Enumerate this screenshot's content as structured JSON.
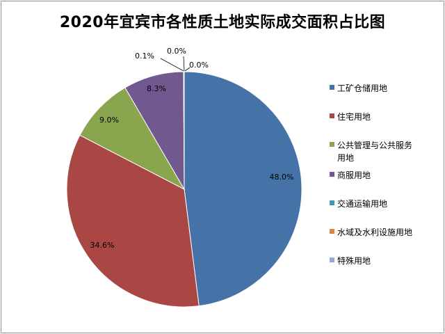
{
  "title": "2020年宜宾市各性质土地实际成交面积占比图",
  "chart_data": {
    "type": "pie",
    "title": "2020年宜宾市各性质土地实际成交面积占比图",
    "legend_position": "right",
    "slices": [
      {
        "name": "工矿仓储用地",
        "value": 48.0,
        "label": "48.0%",
        "color": "#4572A7"
      },
      {
        "name": "住宅用地",
        "value": 34.6,
        "label": "34.6%",
        "color": "#AA4643"
      },
      {
        "name": "公共管理与公共服务用地",
        "value": 9.0,
        "label": "9.0%",
        "color": "#89A54E"
      },
      {
        "name": "商服用地",
        "value": 8.3,
        "label": "8.3%",
        "color": "#71588F"
      },
      {
        "name": "交通运输用地",
        "value": 0.1,
        "label": "0.1%",
        "color": "#4198AF"
      },
      {
        "name": "水域及水利设施用地",
        "value": 0.0,
        "label": "0.0%",
        "color": "#DB843D"
      },
      {
        "name": "特殊用地",
        "value": 0.0,
        "label": "0.0%",
        "color": "#93A9CF"
      }
    ]
  }
}
